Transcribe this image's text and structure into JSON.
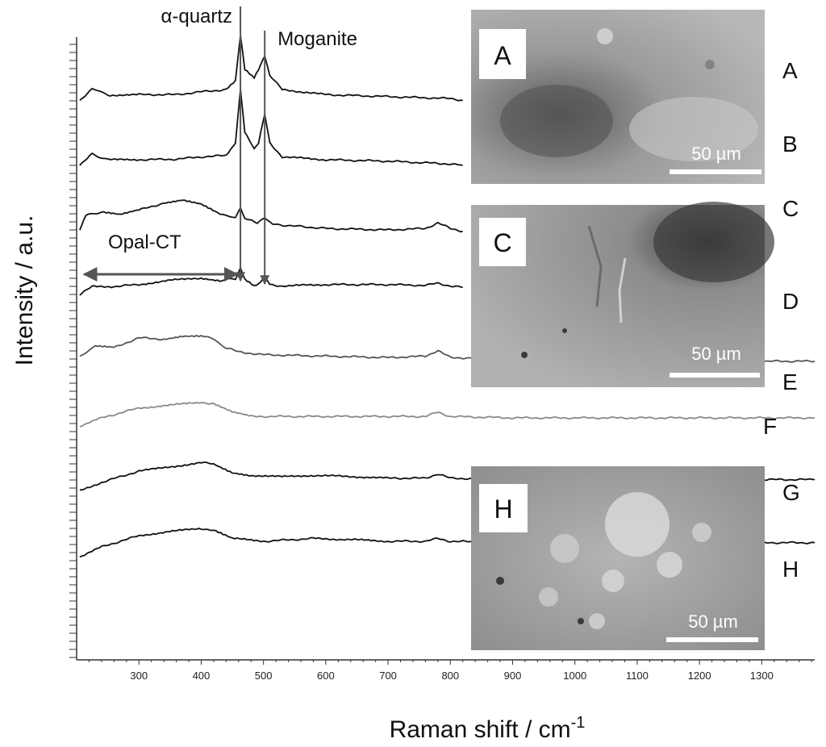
{
  "chart_data": {
    "type": "line",
    "xlabel": "Raman shift / cm",
    "xlabel_sup": "-1",
    "ylabel": "Intensity / a.u.",
    "xlim": [
      200,
      1385
    ],
    "x_ticks": [
      300,
      400,
      500,
      600,
      700,
      800,
      900,
      1000,
      1100,
      1200,
      1300
    ],
    "grid": false,
    "series": [
      {
        "name": "A",
        "color": "#111111",
        "points": [
          [
            205,
            -0.2
          ],
          [
            225,
            0.25
          ],
          [
            250,
            0
          ],
          [
            300,
            0.02
          ],
          [
            360,
            0.02
          ],
          [
            400,
            0.12
          ],
          [
            440,
            0.2
          ],
          [
            455,
            0.5
          ],
          [
            463,
            2.1
          ],
          [
            470,
            0.9
          ],
          [
            485,
            0.6
          ],
          [
            492,
            0.9
          ],
          [
            502,
            1.4
          ],
          [
            510,
            0.7
          ],
          [
            530,
            0.2
          ],
          [
            600,
            0.02
          ],
          [
            700,
            -0.05
          ],
          [
            800,
            -0.12
          ],
          [
            820,
            -0.18
          ]
        ]
      },
      {
        "name": "B",
        "color": "#111111",
        "points": [
          [
            205,
            -0.2
          ],
          [
            225,
            0.2
          ],
          [
            250,
            0
          ],
          [
            300,
            0
          ],
          [
            360,
            0.02
          ],
          [
            400,
            0.1
          ],
          [
            440,
            0.15
          ],
          [
            455,
            0.6
          ],
          [
            463,
            2.5
          ],
          [
            470,
            1.0
          ],
          [
            485,
            0.4
          ],
          [
            492,
            0.6
          ],
          [
            502,
            1.6
          ],
          [
            510,
            0.6
          ],
          [
            530,
            0.1
          ],
          [
            600,
            0
          ],
          [
            700,
            -0.05
          ],
          [
            800,
            -0.15
          ],
          [
            820,
            -0.2
          ]
        ]
      },
      {
        "name": "C",
        "color": "#111111",
        "points": [
          [
            205,
            -0.2
          ],
          [
            215,
            0.3
          ],
          [
            240,
            0.45
          ],
          [
            270,
            0.35
          ],
          [
            300,
            0.5
          ],
          [
            340,
            0.75
          ],
          [
            370,
            0.85
          ],
          [
            400,
            0.7
          ],
          [
            430,
            0.35
          ],
          [
            455,
            0.25
          ],
          [
            463,
            0.55
          ],
          [
            470,
            0.2
          ],
          [
            490,
            0.05
          ],
          [
            502,
            0.25
          ],
          [
            515,
            0
          ],
          [
            600,
            -0.15
          ],
          [
            700,
            -0.2
          ],
          [
            760,
            -0.15
          ],
          [
            780,
            0.05
          ],
          [
            800,
            -0.15
          ],
          [
            820,
            -0.25
          ]
        ]
      },
      {
        "name": "D",
        "color": "#111111",
        "points": [
          [
            205,
            -0.2
          ],
          [
            225,
            0.08
          ],
          [
            260,
            0.08
          ],
          [
            300,
            0.15
          ],
          [
            350,
            0.3
          ],
          [
            400,
            0.38
          ],
          [
            430,
            0.3
          ],
          [
            455,
            0.35
          ],
          [
            463,
            0.75
          ],
          [
            470,
            0.35
          ],
          [
            485,
            0.12
          ],
          [
            495,
            0.2
          ],
          [
            502,
            0.45
          ],
          [
            510,
            0.15
          ],
          [
            530,
            0.1
          ],
          [
            600,
            0.15
          ],
          [
            700,
            0.15
          ],
          [
            760,
            0.12
          ],
          [
            780,
            0.2
          ],
          [
            800,
            0.1
          ],
          [
            820,
            0.05
          ]
        ]
      },
      {
        "name": "E",
        "color": "#555555",
        "points": [
          [
            205,
            -0.1
          ],
          [
            230,
            0.25
          ],
          [
            260,
            0.2
          ],
          [
            300,
            0.55
          ],
          [
            340,
            0.5
          ],
          [
            370,
            0.6
          ],
          [
            400,
            0.6
          ],
          [
            415,
            0.55
          ],
          [
            440,
            0.2
          ],
          [
            460,
            0.05
          ],
          [
            500,
            -0.05
          ],
          [
            600,
            -0.1
          ],
          [
            700,
            -0.15
          ],
          [
            760,
            -0.1
          ],
          [
            780,
            0.1
          ],
          [
            800,
            -0.15
          ],
          [
            900,
            -0.2
          ],
          [
            1000,
            -0.25
          ],
          [
            1060,
            -0.22
          ],
          [
            1075,
            -0.15
          ],
          [
            1090,
            -0.25
          ],
          [
            1200,
            -0.28
          ],
          [
            1385,
            -0.28
          ]
        ]
      },
      {
        "name": "F",
        "color": "#8a8a8a",
        "points": [
          [
            205,
            -0.3
          ],
          [
            240,
            0
          ],
          [
            300,
            0.35
          ],
          [
            350,
            0.45
          ],
          [
            400,
            0.55
          ],
          [
            420,
            0.5
          ],
          [
            450,
            0.2
          ],
          [
            480,
            0.05
          ],
          [
            520,
            0.05
          ],
          [
            600,
            0.05
          ],
          [
            700,
            0.05
          ],
          [
            760,
            0.05
          ],
          [
            780,
            0.2
          ],
          [
            800,
            0.05
          ],
          [
            900,
            0
          ],
          [
            1000,
            0
          ],
          [
            1100,
            0
          ],
          [
            1385,
            0
          ]
        ]
      },
      {
        "name": "G",
        "color": "#111111",
        "points": [
          [
            205,
            -0.3
          ],
          [
            240,
            0
          ],
          [
            300,
            0.4
          ],
          [
            350,
            0.55
          ],
          [
            400,
            0.7
          ],
          [
            420,
            0.65
          ],
          [
            450,
            0.35
          ],
          [
            480,
            0.25
          ],
          [
            530,
            0.2
          ],
          [
            580,
            0.25
          ],
          [
            650,
            0.2
          ],
          [
            700,
            0.15
          ],
          [
            760,
            0.15
          ],
          [
            780,
            0.3
          ],
          [
            800,
            0.15
          ],
          [
            900,
            0.1
          ],
          [
            1000,
            0.1
          ],
          [
            1100,
            0.1
          ],
          [
            1385,
            0.1
          ]
        ]
      },
      {
        "name": "H",
        "color": "#111111",
        "points": [
          [
            205,
            -0.35
          ],
          [
            240,
            0
          ],
          [
            300,
            0.4
          ],
          [
            350,
            0.55
          ],
          [
            400,
            0.65
          ],
          [
            420,
            0.6
          ],
          [
            450,
            0.3
          ],
          [
            500,
            0.2
          ],
          [
            540,
            0.25
          ],
          [
            580,
            0.3
          ],
          [
            650,
            0.25
          ],
          [
            700,
            0.2
          ],
          [
            760,
            0.2
          ],
          [
            780,
            0.3
          ],
          [
            800,
            0.2
          ],
          [
            900,
            0.15
          ],
          [
            1000,
            0.15
          ],
          [
            1100,
            0.15
          ],
          [
            1385,
            0.15
          ]
        ]
      }
    ],
    "annotations": {
      "alpha_quartz": {
        "text": "α-quartz",
        "x": 463
      },
      "moganite": {
        "text": "Moganite",
        "x": 502
      },
      "opal_ct": {
        "text": "Opal-CT",
        "from": 212,
        "to": 458
      }
    }
  },
  "photos": [
    {
      "label": "A",
      "scale_bar": "50 µm"
    },
    {
      "label": "C",
      "scale_bar": "50 µm"
    },
    {
      "label": "H",
      "scale_bar": "50 µm"
    }
  ],
  "colors": {
    "arrow": "#555555",
    "axis": "#333333"
  }
}
